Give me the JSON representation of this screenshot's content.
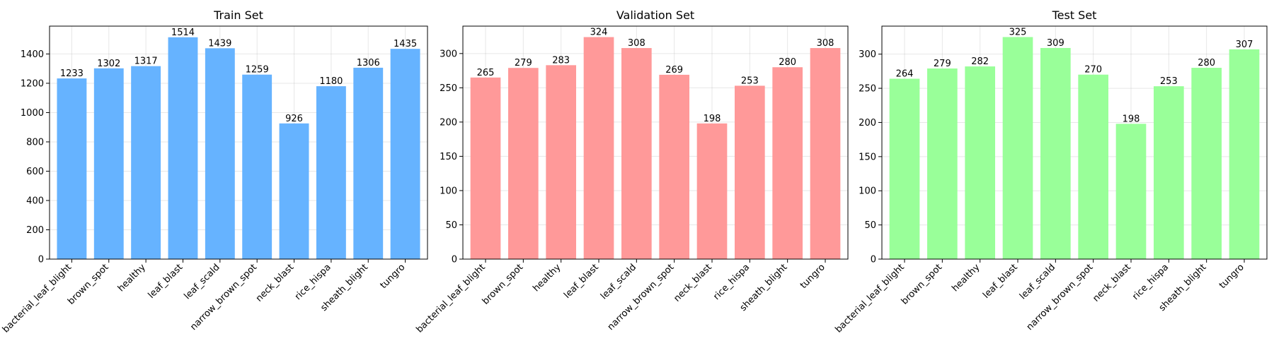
{
  "chart_data": [
    {
      "type": "bar",
      "title": "Train Set",
      "xlabel": "",
      "ylabel": "",
      "color": "#66b3ff",
      "categories": [
        "bacterial_leaf_blight",
        "brown_spot",
        "healthy",
        "leaf_blast",
        "leaf_scald",
        "narrow_brown_spot",
        "neck_blast",
        "rice_hispa",
        "sheath_blight",
        "tungro"
      ],
      "values": [
        1233,
        1302,
        1317,
        1514,
        1439,
        1259,
        926,
        1180,
        1306,
        1435
      ],
      "ylim": [
        0,
        1590
      ],
      "yticks": [
        0,
        200,
        400,
        600,
        800,
        1000,
        1200,
        1400
      ],
      "grid": true
    },
    {
      "type": "bar",
      "title": "Validation Set",
      "xlabel": "",
      "ylabel": "",
      "color": "#ff9999",
      "categories": [
        "bacterial_leaf_blight",
        "brown_spot",
        "healthy",
        "leaf_blast",
        "leaf_scald",
        "narrow_brown_spot",
        "neck_blast",
        "rice_hispa",
        "sheath_blight",
        "tungro"
      ],
      "values": [
        265,
        279,
        283,
        324,
        308,
        269,
        198,
        253,
        280,
        308
      ],
      "ylim": [
        0,
        340
      ],
      "yticks": [
        0,
        50,
        100,
        150,
        200,
        250,
        300
      ],
      "grid": true
    },
    {
      "type": "bar",
      "title": "Test Set",
      "xlabel": "",
      "ylabel": "",
      "color": "#99ff99",
      "categories": [
        "bacterial_leaf_blight",
        "brown_spot",
        "healthy",
        "leaf_blast",
        "leaf_scald",
        "narrow_brown_spot",
        "neck_blast",
        "rice_hispa",
        "sheath_blight",
        "tungro"
      ],
      "values": [
        264,
        279,
        282,
        325,
        309,
        270,
        198,
        253,
        280,
        307
      ],
      "ylim": [
        0,
        341
      ],
      "yticks": [
        0,
        50,
        100,
        150,
        200,
        250,
        300
      ],
      "grid": true
    }
  ]
}
